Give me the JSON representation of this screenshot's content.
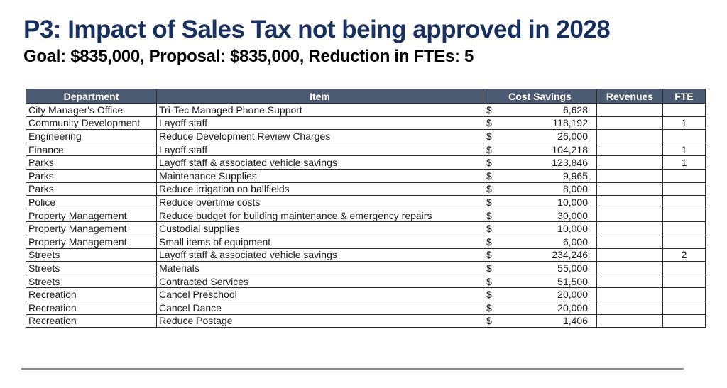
{
  "page": {
    "title": "P3: Impact of Sales Tax not being approved in 2028",
    "subtitle": "Goal: $835,000, Proposal: $835,000, Reduction in FTEs: 5"
  },
  "colors": {
    "title_text": "#18305f",
    "header_bg": "#4a5b72",
    "header_text": "#ffffff",
    "table_border": "#2b2b2b",
    "bottom_rule": "#8c8c8c"
  },
  "table": {
    "columns": [
      "Department",
      "Item",
      "Cost Savings",
      "Revenues",
      "FTE"
    ],
    "currency_symbol": "$",
    "rows": [
      {
        "department": "City Manager's Office",
        "item": "Tri-Tec Managed Phone Support",
        "cost_savings": "6,628",
        "revenues": "",
        "fte": ""
      },
      {
        "department": "Community Development",
        "item": "Layoff staff",
        "cost_savings": "118,192",
        "revenues": "",
        "fte": "1"
      },
      {
        "department": "Engineering",
        "item": "Reduce Development Review Charges",
        "cost_savings": "26,000",
        "revenues": "",
        "fte": ""
      },
      {
        "department": "Finance",
        "item": "Layoff staff",
        "cost_savings": "104,218",
        "revenues": "",
        "fte": "1"
      },
      {
        "department": "Parks",
        "item": "Layoff staff & associated vehicle savings",
        "cost_savings": "123,846",
        "revenues": "",
        "fte": "1"
      },
      {
        "department": "Parks",
        "item": "Maintenance Supplies",
        "cost_savings": "9,965",
        "revenues": "",
        "fte": ""
      },
      {
        "department": "Parks",
        "item": "Reduce irrigation on ballfields",
        "cost_savings": "8,000",
        "revenues": "",
        "fte": ""
      },
      {
        "department": "Police",
        "item": "Reduce overtime costs",
        "cost_savings": "10,000",
        "revenues": "",
        "fte": ""
      },
      {
        "department": "Property Management",
        "item": "Reduce budget for building maintenance & emergency repairs",
        "cost_savings": "30,000",
        "revenues": "",
        "fte": ""
      },
      {
        "department": "Property Management",
        "item": "Custodial supplies",
        "cost_savings": "10,000",
        "revenues": "",
        "fte": ""
      },
      {
        "department": "Property Management",
        "item": "Small items of equipment",
        "cost_savings": "6,000",
        "revenues": "",
        "fte": ""
      },
      {
        "department": "Streets",
        "item": "Layoff staff & associated vehicle savings",
        "cost_savings": "234,246",
        "revenues": "",
        "fte": "2"
      },
      {
        "department": "Streets",
        "item": "Materials",
        "cost_savings": "55,000",
        "revenues": "",
        "fte": ""
      },
      {
        "department": "Streets",
        "item": "Contracted Services",
        "cost_savings": "51,500",
        "revenues": "",
        "fte": ""
      },
      {
        "department": "Recreation",
        "item": "Cancel Preschool",
        "cost_savings": "20,000",
        "revenues": "",
        "fte": ""
      },
      {
        "department": "Recreation",
        "item": "Cancel Dance",
        "cost_savings": "20,000",
        "revenues": "",
        "fte": ""
      },
      {
        "department": "Recreation",
        "item": "Reduce Postage",
        "cost_savings": "1,406",
        "revenues": "",
        "fte": ""
      }
    ]
  }
}
